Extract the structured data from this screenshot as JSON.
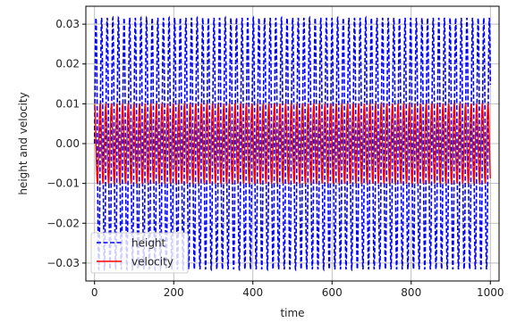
{
  "chart_data": {
    "type": "line",
    "xlabel": "time",
    "ylabel": "height and velocity",
    "xlim": [
      -22,
      1022
    ],
    "ylim": [
      -0.0345,
      0.0345
    ],
    "x_ticks": [
      0,
      200,
      400,
      600,
      800,
      1000
    ],
    "y_ticks": [
      -0.03,
      -0.02,
      -0.01,
      0.0,
      0.01,
      0.02,
      0.03
    ],
    "y_tick_labels": [
      "−0.03",
      "−0.02",
      "−0.01",
      "0.00",
      "0.01",
      "0.02",
      "0.03"
    ],
    "grid": true,
    "legend_position": "lower-left",
    "series": [
      {
        "name": "height",
        "style": "dashed",
        "color": "#0000ff",
        "amplitude": 0.0316,
        "period": 14.2,
        "x_start": 0,
        "x_end": 1000,
        "description": "oscillation between -0.0316 and 0.0316"
      },
      {
        "name": "velocity",
        "style": "solid",
        "color": "#ff0000",
        "amplitude": 0.0099,
        "period": 14.2,
        "x_start": 0,
        "x_end": 1000,
        "description": "oscillation between -0.0099 and 0.0099"
      }
    ]
  }
}
